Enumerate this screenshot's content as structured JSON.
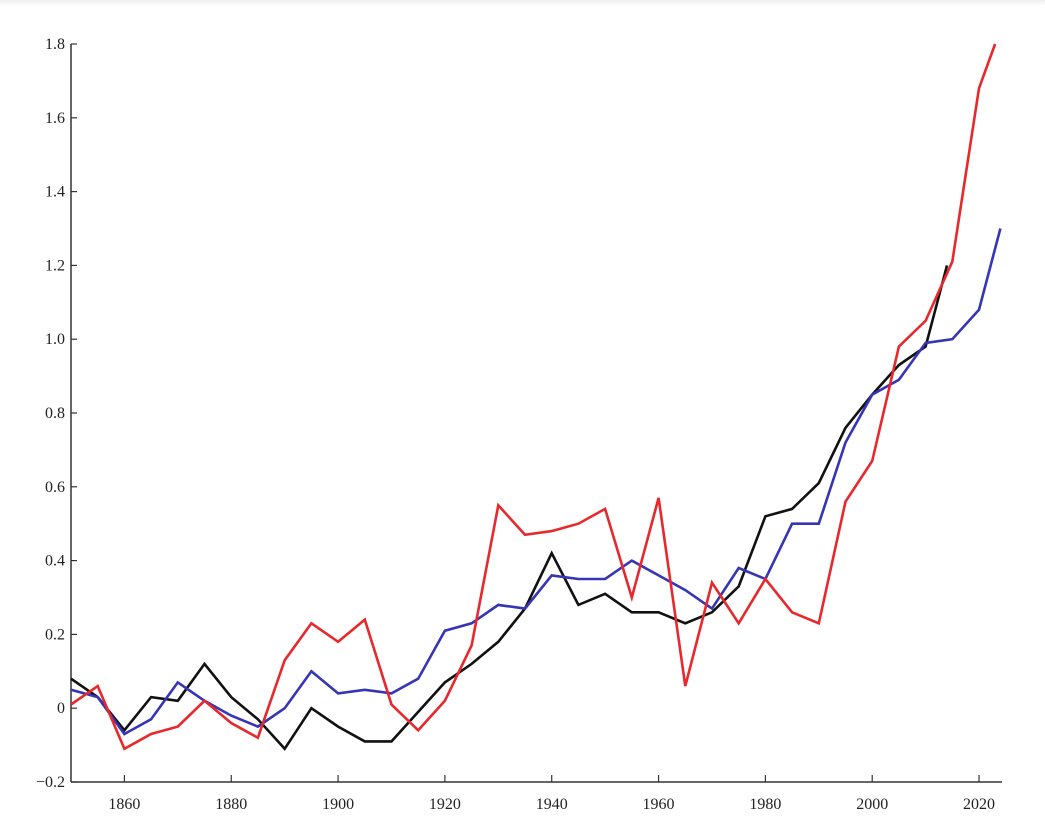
{
  "chart_data": {
    "type": "line",
    "title": "",
    "xlabel": "",
    "ylabel": "",
    "xlim": [
      1850,
      2024.3
    ],
    "ylim": [
      -0.2,
      1.8
    ],
    "grid": false,
    "xticks": [
      1860,
      1880,
      1900,
      1920,
      1940,
      1960,
      1980,
      2000,
      2020
    ],
    "xtick_labels": [
      "1860",
      "1880",
      "1900",
      "1920",
      "1940",
      "1960",
      "1980",
      "2000",
      "2020"
    ],
    "yticks": [
      -0.2,
      0,
      0.2,
      0.4,
      0.6,
      0.8,
      1.0,
      1.2,
      1.4,
      1.6,
      1.8
    ],
    "ytick_labels": [
      "−0.2",
      "0",
      "0.2",
      "0.4",
      "0.6",
      "0.8",
      "1.0",
      "1.2",
      "1.4",
      "1.6",
      "1.8"
    ],
    "series": [
      {
        "name": "black",
        "color": "#111111",
        "x": [
          1850,
          1855,
          1860,
          1865,
          1870,
          1875,
          1880,
          1885,
          1890,
          1895,
          1900,
          1905,
          1910,
          1915,
          1920,
          1925,
          1930,
          1935,
          1940,
          1945,
          1950,
          1955,
          1960,
          1965,
          1970,
          1975,
          1980,
          1985,
          1990,
          1995,
          2000,
          2005,
          2010,
          2014
        ],
        "y": [
          0.08,
          0.03,
          -0.06,
          0.03,
          0.02,
          0.12,
          0.03,
          -0.03,
          -0.11,
          0.0,
          -0.05,
          -0.09,
          -0.09,
          -0.01,
          0.07,
          0.12,
          0.18,
          0.27,
          0.42,
          0.28,
          0.31,
          0.26,
          0.26,
          0.23,
          0.26,
          0.33,
          0.52,
          0.54,
          0.61,
          0.76,
          0.85,
          0.93,
          0.98,
          1.2
        ]
      },
      {
        "name": "blue",
        "color": "#3535b5",
        "x": [
          1850,
          1855,
          1860,
          1865,
          1870,
          1875,
          1880,
          1885,
          1890,
          1895,
          1900,
          1905,
          1910,
          1915,
          1920,
          1925,
          1930,
          1935,
          1940,
          1945,
          1950,
          1955,
          1960,
          1965,
          1970,
          1975,
          1980,
          1985,
          1990,
          1995,
          2000,
          2005,
          2010,
          2015,
          2020,
          2024
        ],
        "y": [
          0.05,
          0.03,
          -0.07,
          -0.03,
          0.07,
          0.02,
          -0.02,
          -0.05,
          0.0,
          0.1,
          0.04,
          0.05,
          0.04,
          0.08,
          0.21,
          0.23,
          0.28,
          0.27,
          0.36,
          0.35,
          0.35,
          0.4,
          0.36,
          0.32,
          0.27,
          0.38,
          0.35,
          0.5,
          0.5,
          0.72,
          0.85,
          0.89,
          0.99,
          1.0,
          1.08,
          1.3
        ]
      },
      {
        "name": "red",
        "color": "#e8282c",
        "x": [
          1850,
          1855,
          1860,
          1865,
          1870,
          1875,
          1880,
          1885,
          1890,
          1895,
          1900,
          1905,
          1910,
          1915,
          1920,
          1925,
          1930,
          1935,
          1940,
          1945,
          1950,
          1955,
          1960,
          1965,
          1970,
          1975,
          1980,
          1985,
          1990,
          1995,
          2000,
          2005,
          2010,
          2015,
          2020,
          2023
        ],
        "y": [
          0.01,
          0.06,
          -0.11,
          -0.07,
          -0.05,
          0.02,
          -0.04,
          -0.08,
          0.13,
          0.23,
          0.18,
          0.24,
          0.01,
          -0.06,
          0.02,
          0.17,
          0.55,
          0.47,
          0.48,
          0.5,
          0.54,
          0.3,
          0.57,
          0.06,
          0.34,
          0.23,
          0.35,
          0.26,
          0.23,
          0.56,
          0.67,
          0.98,
          1.05,
          1.21,
          1.68,
          1.8
        ]
      }
    ]
  }
}
